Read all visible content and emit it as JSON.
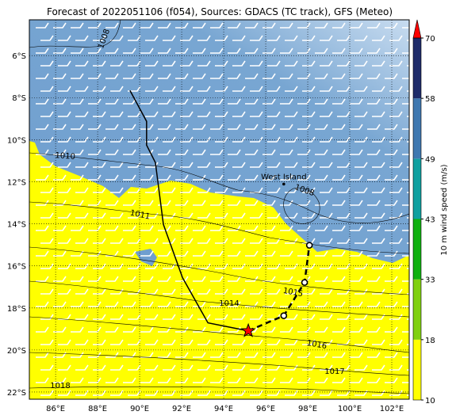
{
  "title": "Forecast of 2022051106 (f054), Sources: GDACS (TC track), GFS (Meteo)",
  "map": {
    "xlim": [
      84.75,
      102.83
    ],
    "ylim": [
      -22.34,
      -4.3
    ],
    "xticks": [
      {
        "value": 86,
        "label": "86°E"
      },
      {
        "value": 88,
        "label": "88°E"
      },
      {
        "value": 90,
        "label": "90°E"
      },
      {
        "value": 92,
        "label": "92°E"
      },
      {
        "value": 94,
        "label": "94°E"
      },
      {
        "value": 96,
        "label": "96°E"
      },
      {
        "value": 98,
        "label": "98°E"
      },
      {
        "value": 100,
        "label": "100°E"
      },
      {
        "value": 102,
        "label": "102°E"
      }
    ],
    "yticks": [
      {
        "value": -6,
        "label": "6°S"
      },
      {
        "value": -8,
        "label": "8°S"
      },
      {
        "value": -10,
        "label": "10°S"
      },
      {
        "value": -12,
        "label": "12°S"
      },
      {
        "value": -14,
        "label": "14°S"
      },
      {
        "value": -16,
        "label": "16°S"
      },
      {
        "value": -18,
        "label": "18°S"
      },
      {
        "value": -20,
        "label": "20°S"
      },
      {
        "value": -22,
        "label": "22°S"
      }
    ],
    "grid": true,
    "isobar_labels": [
      1008,
      1010,
      1011,
      1008,
      1014,
      1015,
      1016,
      1017,
      1018
    ],
    "place": {
      "name": "West Island",
      "lon": 96.86,
      "lat": -12.11
    },
    "track_observed": {
      "lon": [
        89.54,
        90.33,
        90.33,
        90.75,
        91.13,
        92.04,
        93.25,
        95.17
      ],
      "lat": [
        -7.66,
        -9.13,
        -10.26,
        -11.09,
        -14.03,
        -16.56,
        -18.71,
        -19.09
      ]
    },
    "track_forecast": {
      "lon": [
        95.17,
        96.86,
        97.85,
        98.08
      ],
      "lat": [
        -19.09,
        -18.37,
        -16.79,
        -15.02
      ]
    },
    "current_position": {
      "lon": 95.17,
      "lat": -19.09
    }
  },
  "colorbar": {
    "label": "10 m wind speed (m/s)",
    "ticks": [
      10,
      18,
      33,
      43,
      49,
      58,
      70
    ],
    "colors": [
      "#ffff00",
      "#80d010",
      "#10b010",
      "#10a0a0",
      "#3f78b0",
      "#1f2c6a"
    ],
    "extend_color": "#ff0000"
  }
}
